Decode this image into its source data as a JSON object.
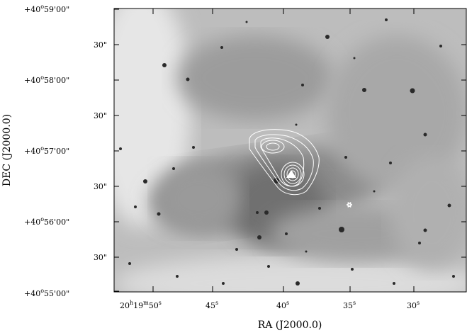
{
  "axes": {
    "xlabel": "RA (J2000.0)",
    "ylabel": "DEC (J2000.0)"
  },
  "dec_ticks": [
    {
      "deg": "+40",
      "sup": "o",
      "rest": "59'00\""
    },
    {
      "label": "30\""
    },
    {
      "deg": "+40",
      "sup": "o",
      "rest": "58'00\""
    },
    {
      "label": "30\""
    },
    {
      "deg": "+40",
      "sup": "o",
      "rest": "57'00\""
    },
    {
      "label": "30\""
    },
    {
      "deg": "+40",
      "sup": "o",
      "rest": "56'00\""
    },
    {
      "label": "30\""
    },
    {
      "deg": "+40",
      "sup": "o",
      "rest": "55'00\""
    }
  ],
  "ra_ticks": [
    {
      "main": "20",
      "h": "h",
      "mid": "19",
      "m": "m",
      "sec": "50",
      "s": "s"
    },
    {
      "sec": "45",
      "s": "s"
    },
    {
      "sec": "40",
      "s": "s"
    },
    {
      "sec": "35",
      "s": "s"
    },
    {
      "sec": "30",
      "s": "s"
    }
  ],
  "image": {
    "type": "greyscale optical/IR sky image with radio contours",
    "contour_color": "#ffffff",
    "marker": "star-marker"
  }
}
